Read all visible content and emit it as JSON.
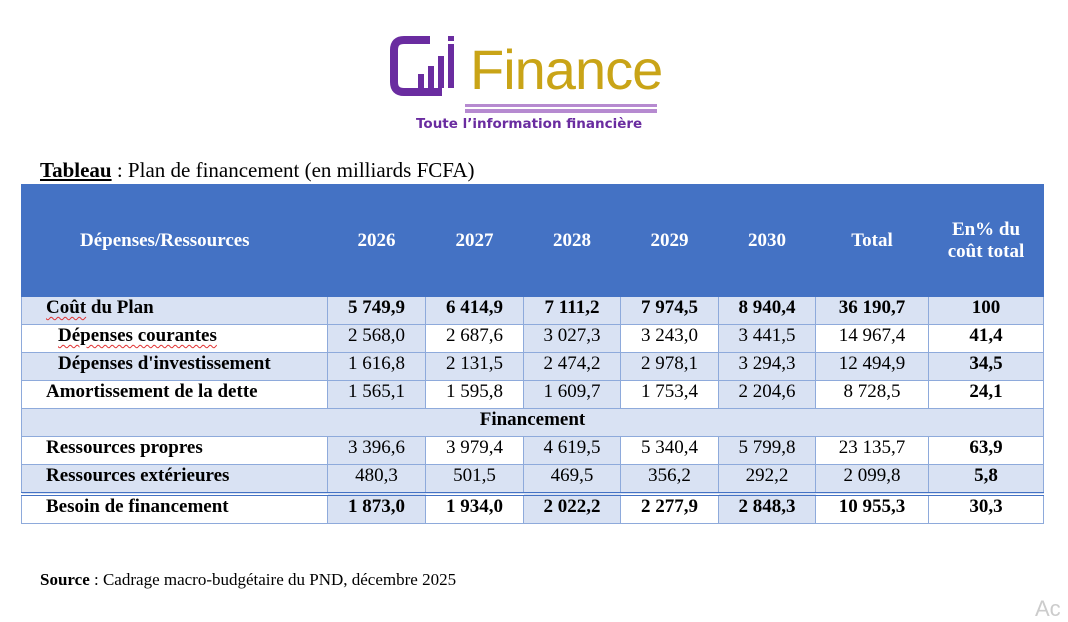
{
  "logo": {
    "word": "Finance",
    "tagline": "Toute l’information financière",
    "colors": {
      "purple": "#6a2ca0",
      "gold": "#c9a417"
    }
  },
  "title": {
    "label": "Tableau",
    "text": " : Plan de financement (en milliards FCFA)"
  },
  "table": {
    "headers": [
      "Dépenses/Ressources",
      "2026",
      "2027",
      "2028",
      "2029",
      "2030",
      "Total",
      "En% du coût total"
    ],
    "rows": [
      {
        "label": "Coût du Plan",
        "values": [
          "5 749,9",
          "6 414,9",
          "7 111,2",
          "7 974,5",
          "8 940,4",
          "36 190,7",
          "100"
        ],
        "style": "shade bold",
        "spell": "Coût"
      },
      {
        "label": "Dépenses courantes",
        "values": [
          "2 568,0",
          "2 687,6",
          "3 027,3",
          "3 243,0",
          "3 441,5",
          "14 967,4",
          "41,4"
        ],
        "style": "alt",
        "indent": true,
        "spell": "all"
      },
      {
        "label": "Dépenses d'investissement",
        "values": [
          "1 616,8",
          "2 131,5",
          "2 474,2",
          "2 978,1",
          "3 294,3",
          "12 494,9",
          "34,5"
        ],
        "style": "shade",
        "indent": true
      },
      {
        "label": "Amortissement de la dette",
        "values": [
          "1 565,1",
          "1 595,8",
          "1 609,7",
          "1 753,4",
          "2 204,6",
          "8 728,5",
          "24,1"
        ],
        "style": "alt"
      },
      {
        "section": "Financement"
      },
      {
        "label": "Ressources propres",
        "values": [
          "3 396,6",
          "3 979,4",
          "4 619,5",
          "5 340,4",
          "5 799,8",
          "23 135,7",
          "63,9"
        ],
        "style": "alt"
      },
      {
        "label": "Ressources extérieures",
        "values": [
          "480,3",
          "501,5",
          "469,5",
          "356,2",
          "292,2",
          "2 099,8",
          "5,8"
        ],
        "style": "shade"
      },
      {
        "label": "Besoin de financement",
        "values": [
          "1 873,0",
          "1 934,0",
          "2 022,2",
          "2 277,9",
          "2 848,3",
          "10 955,3",
          "30,3"
        ],
        "style": "alt bold last"
      }
    ]
  },
  "source": {
    "label": "Source",
    "text": " : Cadrage macro-budgétaire du PND, décembre 2025"
  },
  "watermark": "Ac"
}
